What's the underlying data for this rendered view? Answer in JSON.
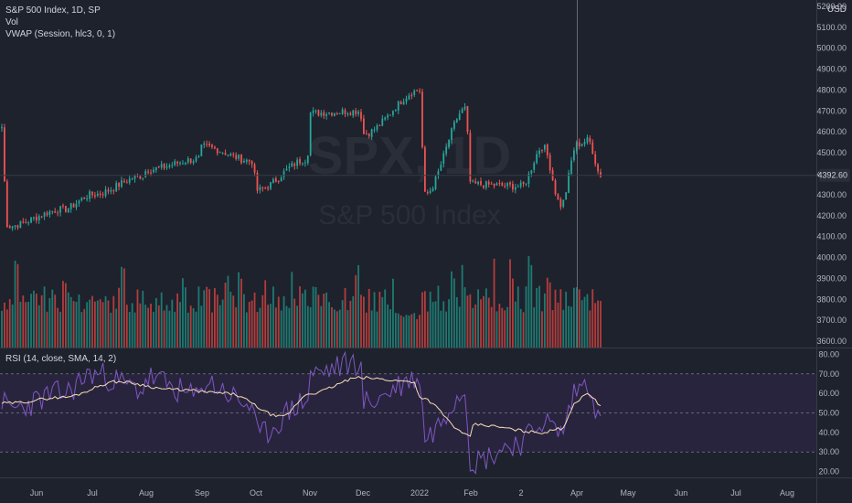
{
  "legend": {
    "symbol": "S&P 500 Index, 1D, SP",
    "volume": "Vol",
    "vwap": "VWAP (Session, hlc3, 0, 1)",
    "rsi": "RSI (14, close, SMA, 14, 2)",
    "currency": "USD"
  },
  "watermark": {
    "ticker": "SPX, 1D",
    "name": "S&P 500 Index"
  },
  "colors": {
    "background": "#1e222d",
    "up": "#26a69a",
    "down": "#ef5350",
    "volume_up": "#1e7a71",
    "volume_down": "#b23d3c",
    "rsi_line": "#7e57c2",
    "rsi_ma": "#f5e0b3",
    "rsi_band": "#2a2540",
    "last_price_bg": "#2a2e39"
  },
  "chart_data": [
    {
      "type": "candlestick",
      "title": "S&P 500 Index, 1D, SP",
      "x": [
        "Jun",
        "Jul",
        "Aug",
        "Sep",
        "Oct",
        "Nov",
        "Dec",
        "2022",
        "Feb",
        "2",
        "Apr",
        "May",
        "Jun",
        "Jul",
        "Aug"
      ],
      "anchors": [
        [
          "May",
          4150
        ],
        [
          "Jun",
          4230
        ],
        [
          "Jul",
          4300
        ],
        [
          "Jul",
          4390
        ],
        [
          "Aug",
          4420
        ],
        [
          "Aug",
          4470
        ],
        [
          "Sep",
          4530
        ],
        [
          "Sep",
          4460
        ],
        [
          "Oct",
          4320
        ],
        [
          "Oct",
          4470
        ],
        [
          "Nov",
          4690
        ],
        [
          "Nov",
          4700
        ],
        [
          "Dec",
          4590
        ],
        [
          "Dec",
          4710
        ],
        [
          "2022",
          4800
        ],
        [
          "2022",
          4700
        ],
        [
          "Feb",
          4350
        ],
        [
          "Feb",
          4530
        ],
        [
          "2",
          4340
        ],
        [
          "2",
          4300
        ],
        [
          "Mar",
          4250
        ],
        [
          "Apr",
          4540
        ],
        [
          "Apr",
          4560
        ],
        [
          "Apr",
          4393
        ]
      ],
      "last_price": "4392.60",
      "y_ticks": [
        "5200.00",
        "5100.00",
        "5000.00",
        "4900.00",
        "4800.00",
        "4700.00",
        "4600.00",
        "4500.00",
        "4400.00",
        "4300.00",
        "4200.00",
        "4100.00",
        "4000.00",
        "3900.00",
        "3800.00",
        "3700.00",
        "3600.00"
      ],
      "ylim": [
        3570,
        5230
      ]
    },
    {
      "type": "bar",
      "title": "Vol",
      "shape": "tall spikes near Jul, Nov, Dec, Jan, Feb and Mar; generally ~55% of panel"
    },
    {
      "type": "line",
      "title": "RSI (14, close, SMA, 14, 2)",
      "series": [
        {
          "anchors": [
            [
              "May",
              52
            ],
            [
              "Jun",
              60
            ],
            [
              "Jul",
              70
            ],
            [
              "Jul",
              62
            ],
            [
              "Aug",
              68
            ],
            [
              "Aug",
              58
            ],
            [
              "Sep",
              66
            ],
            [
              "Sep",
              54
            ],
            [
              "Oct",
              38
            ],
            [
              "Oct",
              56
            ],
            [
              "Nov",
              70
            ],
            [
              "Nov",
              76
            ],
            [
              "Dec",
              55
            ],
            [
              "Dec",
              62
            ],
            [
              "2022",
              68
            ],
            [
              "2022",
              58
            ],
            [
              "Feb",
              25
            ],
            [
              "Feb",
              46
            ],
            [
              "2",
              35
            ],
            [
              "2",
              38
            ],
            [
              "Mar",
              40
            ],
            [
              "Apr",
              62
            ],
            [
              "Apr",
              66
            ],
            [
              "Apr",
              45
            ]
          ]
        },
        {
          "anchors": [
            [
              "May",
              55
            ],
            [
              "Jun",
              58
            ],
            [
              "Jul",
              66
            ],
            [
              "Aug",
              62
            ],
            [
              "Sep",
              60
            ],
            [
              "Oct",
              48
            ],
            [
              "Nov",
              60
            ],
            [
              "Nov",
              68
            ],
            [
              "Dec",
              66
            ],
            [
              "2022",
              58
            ],
            [
              "2022",
              55
            ],
            [
              "Feb",
              38
            ],
            [
              "Feb",
              40
            ],
            [
              "2",
              44
            ],
            [
              "Mar",
              42
            ],
            [
              "Apr",
              56
            ],
            [
              "Apr",
              60
            ],
            [
              "Apr",
              54
            ]
          ]
        }
      ],
      "y_ticks": [
        "80.00",
        "70.00",
        "60.00",
        "50.00",
        "40.00",
        "30.00",
        "20.00"
      ],
      "ylim": [
        17,
        83
      ],
      "bands": [
        70,
        50,
        30
      ]
    }
  ]
}
